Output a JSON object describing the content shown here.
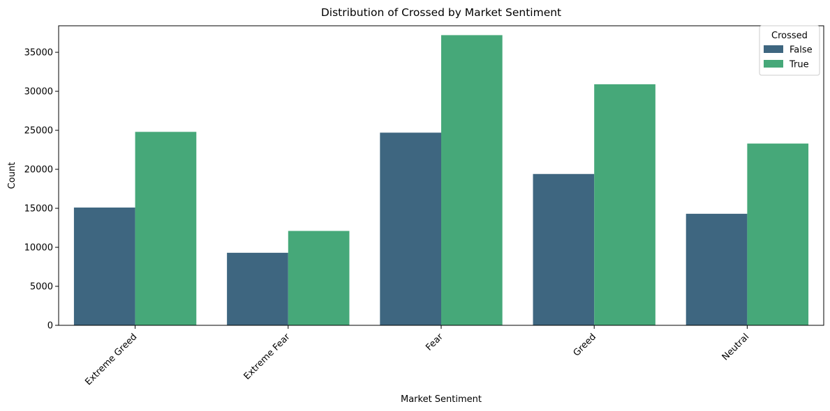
{
  "chart_data": {
    "type": "bar",
    "title": "Distribution of Crossed by Market Sentiment",
    "xlabel": "Market Sentiment",
    "ylabel": "Count",
    "categories": [
      "Extreme Greed",
      "Extreme Fear",
      "Fear",
      "Greed",
      "Neutral"
    ],
    "series": [
      {
        "name": "False",
        "color": "#3e6680",
        "values": [
          15100,
          9300,
          24700,
          19400,
          14300
        ]
      },
      {
        "name": "True",
        "color": "#46a879",
        "values": [
          24800,
          12100,
          37200,
          30900,
          23300
        ]
      }
    ],
    "ylim": [
      0,
      38400
    ],
    "yticks": [
      0,
      5000,
      10000,
      15000,
      20000,
      25000,
      30000,
      35000
    ],
    "grid": false,
    "legend": {
      "title": "Crossed",
      "position": "top-right"
    }
  }
}
